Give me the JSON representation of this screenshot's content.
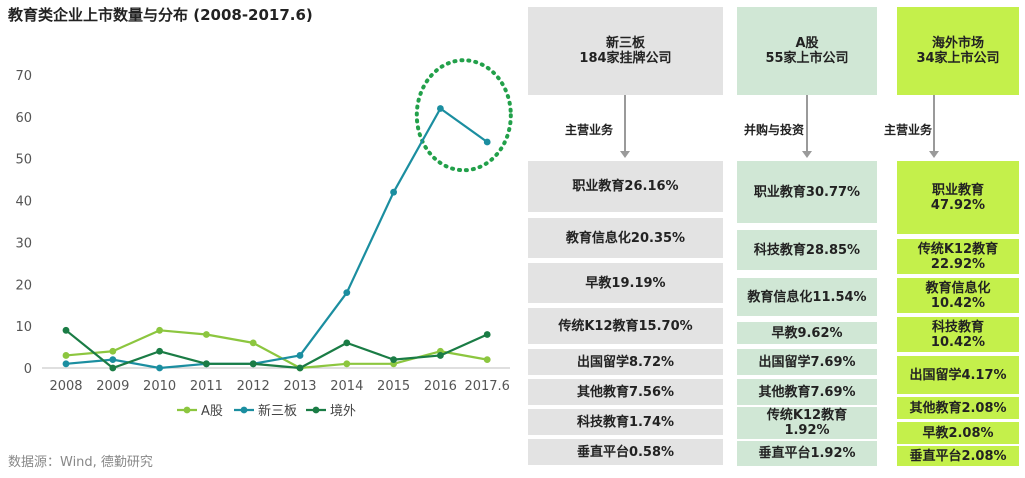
{
  "title": "教育类企业上市数量与分布 (2008-2017.6)",
  "source": "数据源：Wind, 德勤研究",
  "chart_data": {
    "type": "line",
    "title": "教育类企业上市数量与分布 (2008-2017.6)",
    "categories": [
      "2008",
      "2009",
      "2010",
      "2011",
      "2012",
      "2013",
      "2014",
      "2015",
      "2016",
      "2017.6"
    ],
    "y_ticks": [
      "0",
      "10",
      "20",
      "30",
      "40",
      "50",
      "60",
      "70"
    ],
    "ylim": [
      0,
      70
    ],
    "grid": false,
    "legend_position": "bottom",
    "series": [
      {
        "name": "A股",
        "color": "#8cc63f",
        "values": [
          3,
          4,
          9,
          8,
          6,
          0,
          1,
          1,
          4,
          2
        ]
      },
      {
        "name": "新三板",
        "color": "#1b8ea0",
        "values": [
          1,
          2,
          0,
          1,
          1,
          3,
          18,
          42,
          62,
          54
        ]
      },
      {
        "name": "境外",
        "color": "#1a7c45",
        "values": [
          9,
          0,
          4,
          1,
          1,
          0,
          6,
          2,
          3,
          8
        ]
      }
    ]
  },
  "panels": [
    {
      "header_line1": "新三板",
      "header_line2": "184家挂牌公司",
      "arrow_label": "主营业务",
      "items": [
        "职业教育26.16%",
        "教育信息化20.35%",
        "早教19.19%",
        "传统K12教育15.70%",
        "出国留学8.72%",
        "其他教育7.56%",
        "科技教育1.74%",
        "垂直平台0.58%"
      ]
    },
    {
      "header_line1": "A股",
      "header_line2": "55家上市公司",
      "arrow_label": "并购与投资",
      "items": [
        "职业教育30.77%",
        "科技教育28.85%",
        "教育信息化11.54%",
        "早教9.62%",
        "出国留学7.69%",
        "其他教育7.69%",
        "传统K12教育\n1.92%",
        "垂直平台1.92%"
      ]
    },
    {
      "header_line1": "海外市场",
      "header_line2": "34家上市公司",
      "arrow_label": "主营业务",
      "items": [
        "职业教育\n47.92%",
        "传统K12教育\n22.92%",
        "教育信息化\n10.42%",
        "科技教育\n10.42%",
        "出国留学4.17%",
        "其他教育2.08%",
        "早教2.08%",
        "垂直平台2.08%"
      ]
    }
  ]
}
